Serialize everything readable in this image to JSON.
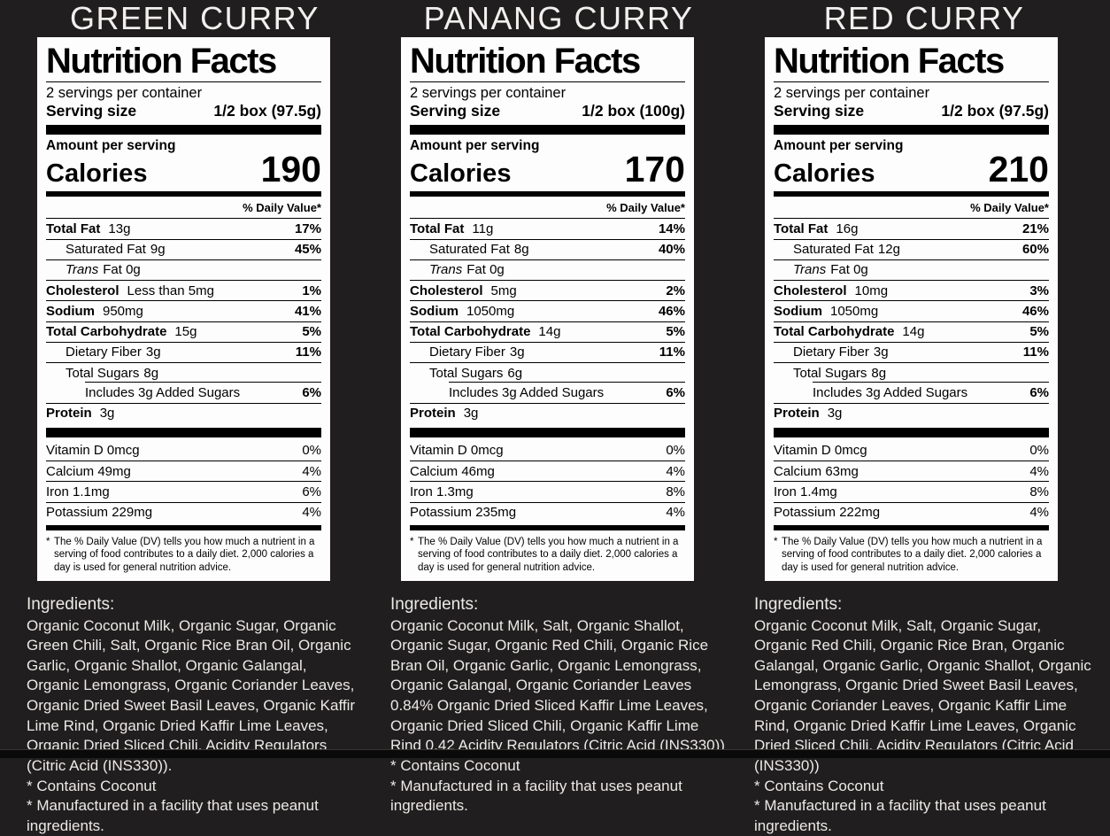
{
  "page": {
    "background_color": "#211e1f",
    "footer_bar_color": "#0a0a0a"
  },
  "shared": {
    "footnote_symbol": "*",
    "footnote_text": "The % Daily Value (DV) tells you how much a nutrient in a serving of food contributes to a daily diet. 2,000 calories a day is used for general nutrition advice."
  },
  "products": [
    {
      "title": "GREEN CURRY",
      "label": {
        "heading": "Nutrition Facts",
        "servings_per_container": "2 servings per container",
        "serving_size_label": "Serving size",
        "serving_size_value": "1/2 box (97.5g)",
        "amount_per_serving": "Amount per serving",
        "calories_label": "Calories",
        "calories_value": "190",
        "daily_value_header": "% Daily Value*",
        "nutrients": [
          {
            "name": "Total Fat",
            "amount": "13g",
            "dv": "17%",
            "bold": true,
            "dv_bold": true,
            "indent": 0
          },
          {
            "name": "Saturated Fat",
            "amount": "9g",
            "dv": "45%",
            "dv_bold": true,
            "indent": 1
          },
          {
            "name": "Trans",
            "amount": "Fat 0g",
            "italic": true,
            "indent": 1
          },
          {
            "name": "Cholesterol",
            "amount": "Less than 5mg",
            "dv": "1%",
            "bold": true,
            "dv_bold": true,
            "indent": 0
          },
          {
            "name": "Sodium",
            "amount": "950mg",
            "dv": "41%",
            "bold": true,
            "dv_bold": true,
            "indent": 0
          },
          {
            "name": "Total Carbohydrate",
            "amount": "15g",
            "dv": "5%",
            "bold": true,
            "dv_bold": true,
            "indent": 0
          },
          {
            "name": "Dietary Fiber",
            "amount": "3g",
            "dv": "11%",
            "dv_bold": true,
            "indent": 1
          },
          {
            "name": "Total Sugars",
            "amount": "8g",
            "indent": 1,
            "rule_below_indent": true
          },
          {
            "name": "Includes 3g Added Sugars",
            "dv": "6%",
            "dv_bold": true,
            "indent": 2
          },
          {
            "name": "Protein",
            "amount": "3g",
            "bold": true,
            "indent": 0
          }
        ],
        "vitamins": [
          {
            "name": "Vitamin D 0mcg",
            "dv": "0%"
          },
          {
            "name": "Calcium 49mg",
            "dv": "4%"
          },
          {
            "name": "Iron 1.1mg",
            "dv": "6%"
          },
          {
            "name": "Potassium 229mg",
            "dv": "4%"
          }
        ]
      },
      "ingredients": {
        "heading": "Ingredients:",
        "text": "Organic Coconut Milk, Organic Sugar, Organic Green Chili, Salt, Organic Rice Bran Oil, Organic Garlic, Organic Shallot, Organic Galangal, Organic Lemongrass, Organic Coriander Leaves, Organic Dried Sweet Basil Leaves, Organic Kaffir Lime Rind, Organic Dried Kaffir Lime Leaves, Organic Dried Sliced Chili, Acidity Regulators (Citric Acid (INS330)).",
        "notes": [
          "* Contains Coconut",
          "* Manufactured in a facility that uses peanut ingredients."
        ]
      }
    },
    {
      "title": "PANANG CURRY",
      "label": {
        "heading": "Nutrition Facts",
        "servings_per_container": "2 servings per container",
        "serving_size_label": "Serving size",
        "serving_size_value": "1/2 box (100g)",
        "amount_per_serving": "Amount per serving",
        "calories_label": "Calories",
        "calories_value": "170",
        "daily_value_header": "% Daily Value*",
        "nutrients": [
          {
            "name": "Total Fat",
            "amount": "11g",
            "dv": "14%",
            "bold": true,
            "dv_bold": true,
            "indent": 0
          },
          {
            "name": "Saturated Fat",
            "amount": "8g",
            "dv": "40%",
            "dv_bold": true,
            "indent": 1
          },
          {
            "name": "Trans",
            "amount": "Fat 0g",
            "italic": true,
            "indent": 1
          },
          {
            "name": "Cholesterol",
            "amount": "5mg",
            "dv": "2%",
            "bold": true,
            "dv_bold": true,
            "indent": 0
          },
          {
            "name": "Sodium",
            "amount": "1050mg",
            "dv": "46%",
            "bold": true,
            "dv_bold": true,
            "indent": 0
          },
          {
            "name": "Total Carbohydrate",
            "amount": "14g",
            "dv": "5%",
            "bold": true,
            "dv_bold": true,
            "indent": 0
          },
          {
            "name": "Dietary Fiber",
            "amount": "3g",
            "dv": "11%",
            "dv_bold": true,
            "indent": 1
          },
          {
            "name": "Total Sugars",
            "amount": "6g",
            "indent": 1,
            "rule_below_indent": true
          },
          {
            "name": "Includes 3g Added Sugars",
            "dv": "6%",
            "dv_bold": true,
            "indent": 2
          },
          {
            "name": "Protein",
            "amount": "3g",
            "bold": true,
            "indent": 0
          }
        ],
        "vitamins": [
          {
            "name": "Vitamin D 0mcg",
            "dv": "0%"
          },
          {
            "name": "Calcium 46mg",
            "dv": "4%"
          },
          {
            "name": "Iron 1.3mg",
            "dv": "8%"
          },
          {
            "name": "Potassium 235mg",
            "dv": "4%"
          }
        ]
      },
      "ingredients": {
        "heading": "Ingredients:",
        "text": "Organic Coconut Milk, Salt, Organic Shallot, Organic Sugar, Organic Red Chili, Organic Rice Bran Oil, Organic Garlic, Organic Lemongrass, Organic Galangal, Organic Coriander Leaves 0.84% Organic Dried Sliced Kaffir Lime Leaves, Organic Dried Sliced Chili, Organic Kaffir Lime Rind 0.42 Acidity Regulators (Citric Acid (INS330))",
        "notes": [
          "* Contains Coconut",
          "* Manufactured in a facility that uses peanut ingredients."
        ]
      }
    },
    {
      "title": "RED CURRY",
      "label": {
        "heading": "Nutrition Facts",
        "servings_per_container": "2 servings per container",
        "serving_size_label": "Serving size",
        "serving_size_value": "1/2 box (97.5g)",
        "amount_per_serving": "Amount per serving",
        "calories_label": "Calories",
        "calories_value": "210",
        "daily_value_header": "% Daily Value*",
        "nutrients": [
          {
            "name": "Total Fat",
            "amount": "16g",
            "dv": "21%",
            "bold": true,
            "dv_bold": true,
            "indent": 0
          },
          {
            "name": "Saturated Fat",
            "amount": "12g",
            "dv": "60%",
            "dv_bold": true,
            "indent": 1
          },
          {
            "name": "Trans",
            "amount": "Fat 0g",
            "italic": true,
            "indent": 1
          },
          {
            "name": "Cholesterol",
            "amount": "10mg",
            "dv": "3%",
            "bold": true,
            "dv_bold": true,
            "indent": 0
          },
          {
            "name": "Sodium",
            "amount": "1050mg",
            "dv": "46%",
            "bold": true,
            "dv_bold": true,
            "indent": 0
          },
          {
            "name": "Total Carbohydrate",
            "amount": "14g",
            "dv": "5%",
            "bold": true,
            "dv_bold": true,
            "indent": 0
          },
          {
            "name": "Dietary Fiber",
            "amount": "3g",
            "dv": "11%",
            "dv_bold": true,
            "indent": 1
          },
          {
            "name": "Total Sugars",
            "amount": "8g",
            "indent": 1,
            "rule_below_indent": true
          },
          {
            "name": "Includes 3g Added Sugars",
            "dv": "6%",
            "dv_bold": true,
            "indent": 2
          },
          {
            "name": "Protein",
            "amount": "3g",
            "bold": true,
            "indent": 0
          }
        ],
        "vitamins": [
          {
            "name": "Vitamin D 0mcg",
            "dv": "0%"
          },
          {
            "name": "Calcium 63mg",
            "dv": "4%"
          },
          {
            "name": "Iron 1.4mg",
            "dv": "8%"
          },
          {
            "name": "Potassium 222mg",
            "dv": "4%"
          }
        ]
      },
      "ingredients": {
        "heading": "Ingredients:",
        "text": "Organic Coconut Milk, Salt, Organic Sugar, Organic Red Chili, Organic Rice Bran, Organic Galangal, Organic Garlic, Organic Shallot, Organic Lemongrass, Organic Dried Sweet Basil Leaves, Organic Coriander Leaves, Organic Kaffir Lime Rind, Organic Dried Kaffir Lime Leaves, Organic Dried Sliced Chili, Acidity Regulators (Citric Acid (INS330))",
        "notes": [
          "* Contains Coconut",
          "* Manufactured in a facility that uses peanut ingredients."
        ]
      }
    }
  ]
}
